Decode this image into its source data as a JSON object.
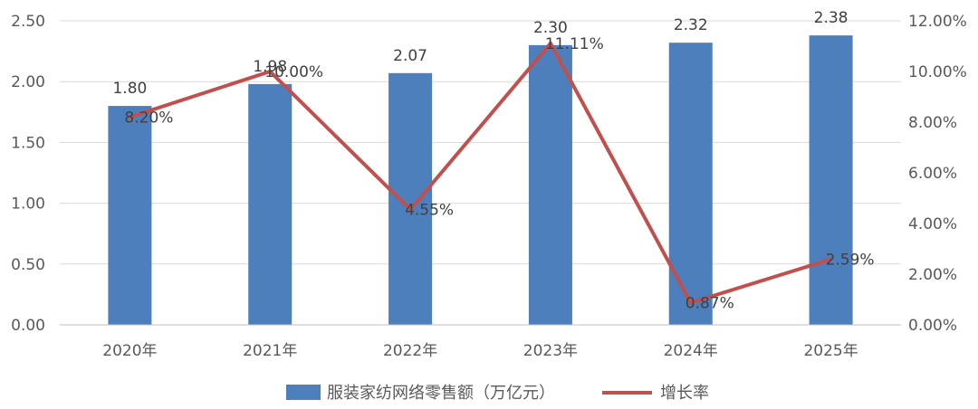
{
  "chart_data": {
    "type": "bar+line",
    "categories": [
      "2020年",
      "2021年",
      "2022年",
      "2023年",
      "2024年",
      "2025年"
    ],
    "series": [
      {
        "name": "服装家纺网络零售额（万亿元）",
        "type": "bar",
        "axis": "left",
        "color": "#4e7fbd",
        "values": [
          1.8,
          1.98,
          2.07,
          2.3,
          2.32,
          2.38
        ],
        "labels": [
          "1.80",
          "1.98",
          "2.07",
          "2.30",
          "2.32",
          "2.38"
        ]
      },
      {
        "name": "增长率",
        "type": "line",
        "axis": "right",
        "color": "#c0504d",
        "values": [
          8.2,
          10.0,
          4.55,
          11.11,
          0.87,
          2.59
        ],
        "labels": [
          "8.20%",
          "10.00%",
          "4.55%",
          "11.11%",
          "0.87%",
          "2.59%"
        ]
      }
    ],
    "left_axis": {
      "ylim": [
        0,
        2.5
      ],
      "ticks": [
        "0.00",
        "0.50",
        "1.00",
        "1.50",
        "2.00",
        "2.50"
      ]
    },
    "right_axis": {
      "ylim": [
        0,
        12
      ],
      "ticks": [
        "0.00%",
        "2.00%",
        "4.00%",
        "6.00%",
        "8.00%",
        "10.00%",
        "12.00%"
      ]
    },
    "grid": true,
    "legend": "bottom"
  }
}
